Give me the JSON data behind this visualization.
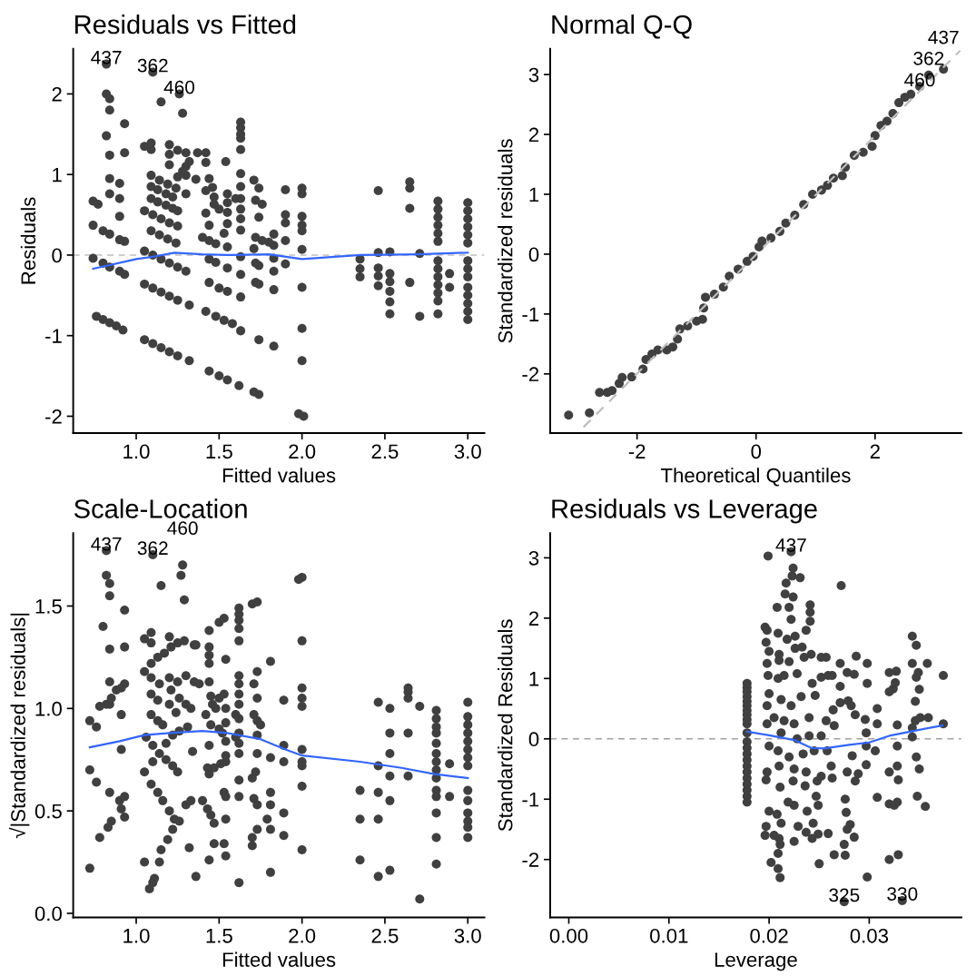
{
  "chart_data": [
    {
      "type": "scatter",
      "title": "Residuals vs Fitted",
      "xlabel": "Fitted values",
      "ylabel": "Residuals",
      "marker": "circle",
      "legend": false,
      "grid": false,
      "xlim": [
        0.62,
        3.1
      ],
      "ylim": [
        -2.21,
        2.56
      ],
      "xticks": [
        {
          "value": 1,
          "label": "1.0"
        },
        {
          "value": 1.5,
          "label": "1.5"
        },
        {
          "value": 2,
          "label": "2.0"
        },
        {
          "value": 2.5,
          "label": "2.5"
        },
        {
          "value": 3,
          "label": "3.0"
        }
      ],
      "yticks": [
        -2,
        -1,
        0,
        1,
        2
      ],
      "ref_lines": [
        {
          "axis": "y",
          "value": 0,
          "label": null,
          "color": "#bebebe",
          "line_style": "dashed"
        }
      ],
      "annotations": [
        {
          "text": "437",
          "x": 0.82,
          "y": 2.37
        },
        {
          "text": "362",
          "x": 1.1,
          "y": 2.27
        },
        {
          "text": "460",
          "x": 1.26,
          "y": 2.0
        }
      ],
      "series": [
        {
          "color": "#404040",
          "x": [
            0.74,
            0.74,
            0.74,
            0.77,
            0.76,
            0.8,
            0.84,
            0.88,
            0.92,
            0.8,
            0.84,
            0.8,
            0.84,
            0.9,
            0.93,
            0.9,
            0.93,
            0.82,
            0.82,
            0.84,
            0.84,
            0.82,
            0.84,
            0.84,
            0.84,
            0.93,
            0.93,
            0.9,
            0.9,
            0.9,
            1.1,
            1.15,
            1.26,
            1.28,
            1.05,
            1.09,
            1.09,
            1.2,
            1.2,
            1.2,
            1.25,
            1.3,
            1.37,
            1.32,
            1.3,
            1.28,
            1.25,
            1.3,
            1.36,
            1.09,
            1.14,
            1.19,
            1.24,
            1.3,
            1.09,
            1.13,
            1.18,
            1.22,
            1.09,
            1.13,
            1.18,
            1.22,
            1.25,
            1.05,
            1.1,
            1.15,
            1.2,
            1.25,
            1.09,
            1.14,
            1.19,
            1.24,
            1.05,
            1.1,
            1.15,
            1.2,
            1.25,
            1.3,
            1.05,
            1.1,
            1.15,
            1.2,
            1.25,
            1.32,
            1.05,
            1.1,
            1.15,
            1.2,
            1.25,
            1.32,
            1.42,
            1.42,
            1.44,
            1.46,
            1.42,
            1.47,
            1.47,
            1.5,
            1.42,
            1.44,
            1.4,
            1.44,
            1.48,
            1.44,
            1.48,
            1.44,
            1.5,
            1.55,
            1.42,
            1.48,
            1.53,
            1.58,
            1.44,
            1.5,
            1.55,
            1.54,
            1.55,
            1.55,
            1.55,
            1.55,
            1.53,
            1.55,
            1.55,
            1.63,
            1.63,
            1.63,
            1.63,
            1.63,
            1.63,
            1.63,
            1.63,
            1.63,
            1.63,
            1.63,
            1.63,
            1.63,
            1.63,
            1.63,
            1.62,
            1.6,
            1.71,
            1.74,
            1.72,
            1.76,
            1.74,
            1.72,
            1.76,
            1.71,
            1.72,
            1.74,
            1.72,
            1.74,
            1.74,
            1.83,
            1.71,
            1.74,
            1.83,
            1.8,
            1.83,
            1.83,
            1.83,
            1.83,
            1.9,
            1.9,
            1.9,
            1.9,
            1.9,
            2.0,
            2.0,
            2.0,
            2.0,
            2.0,
            2.0,
            2.0,
            2.0,
            2.0,
            1.98,
            2.01,
            2.35,
            2.35,
            2.35,
            2.46,
            2.46,
            2.46,
            2.46,
            2.46,
            2.53,
            2.53,
            2.53,
            2.53,
            2.53,
            2.53,
            2.65,
            2.65,
            2.65,
            2.65,
            2.71,
            2.71,
            2.82,
            2.82,
            2.82,
            2.82,
            2.82,
            2.82,
            2.82,
            2.82,
            2.82,
            2.82,
            2.82,
            2.82,
            2.82,
            2.89,
            2.89,
            3.0,
            3.0,
            3.0,
            3.0,
            3.0,
            3.0,
            3.0,
            3.0,
            3.0,
            3.0,
            3.0,
            3.0,
            3.0,
            3.0
          ],
          "values": [
            0.67,
            0.37,
            -0.04,
            0.63,
            -0.76,
            -0.8,
            -0.84,
            -0.88,
            -0.93,
            0.3,
            0.26,
            -0.1,
            -0.15,
            0.19,
            0.17,
            -0.2,
            -0.24,
            2.37,
            2.0,
            1.94,
            1.8,
            1.48,
            1.24,
            0.95,
            0.76,
            1.63,
            1.27,
            0.89,
            0.7,
            0.48,
            2.27,
            1.9,
            2.0,
            1.76,
            1.35,
            1.39,
            1.31,
            1.37,
            1.25,
            1.12,
            1.3,
            1.27,
            1.27,
            1.16,
            1.1,
            1.04,
            0.97,
            0.99,
            0.94,
            0.99,
            0.93,
            0.88,
            0.83,
            0.76,
            0.85,
            0.81,
            0.76,
            0.72,
            0.7,
            0.66,
            0.62,
            0.58,
            0.55,
            0.55,
            0.5,
            0.45,
            0.4,
            0.36,
            0.3,
            0.25,
            0.2,
            0.15,
            0.05,
            0.0,
            -0.05,
            -0.1,
            -0.15,
            -0.2,
            -0.36,
            -0.41,
            -0.46,
            -0.51,
            -0.56,
            -0.62,
            -1.05,
            -1.1,
            -1.15,
            -1.2,
            -1.25,
            -1.31,
            1.27,
            1.15,
            0.95,
            0.84,
            0.8,
            0.72,
            0.63,
            0.57,
            0.52,
            0.37,
            0.22,
            0.18,
            0.14,
            -0.05,
            -0.09,
            -0.34,
            -0.41,
            -0.45,
            -0.7,
            -0.76,
            -0.81,
            -0.85,
            -1.44,
            -1.5,
            -1.55,
            1.16,
            0.76,
            0.65,
            0.53,
            0.39,
            0.27,
            0.1,
            -0.16,
            1.65,
            1.58,
            1.5,
            1.45,
            1.31,
            1.01,
            0.85,
            0.7,
            0.57,
            0.45,
            0.31,
            -0.02,
            -0.24,
            -0.52,
            -0.94,
            -1.62,
            0.7,
            0.93,
            0.83,
            0.68,
            0.63,
            0.47,
            0.22,
            0.18,
            0.08,
            -0.1,
            -0.13,
            -0.34,
            -0.36,
            -1.05,
            -1.13,
            -1.7,
            -1.73,
            0.26,
            0.16,
            0.12,
            -0.04,
            -0.2,
            -0.43,
            0.81,
            0.5,
            0.4,
            0.18,
            -0.11,
            0.83,
            0.76,
            0.48,
            0.37,
            0.3,
            0.07,
            -0.4,
            -0.91,
            -1.31,
            -1.97,
            -2.0,
            -0.05,
            -0.17,
            -0.27,
            0.8,
            0.03,
            -0.16,
            -0.26,
            -0.38,
            0.04,
            -0.23,
            -0.33,
            -0.45,
            -0.58,
            -0.73,
            0.91,
            0.83,
            0.58,
            -0.34,
            0.02,
            -0.76,
            0.67,
            0.57,
            0.47,
            0.37,
            0.27,
            0.17,
            -0.07,
            -0.17,
            -0.27,
            -0.37,
            -0.47,
            -0.57,
            -0.73,
            -0.23,
            -0.4,
            0.65,
            0.55,
            0.45,
            0.35,
            0.25,
            0.15,
            -0.07,
            -0.17,
            -0.27,
            -0.4,
            -0.5,
            -0.6,
            -0.7,
            -0.8
          ]
        },
        {
          "type": "line",
          "color": "#3366ff",
          "line_style": "solid",
          "marker": "none",
          "x": [
            0.74,
            1.0,
            1.1,
            1.23,
            1.4,
            1.55,
            1.8,
            2.0,
            2.35,
            2.7,
            3.0
          ],
          "values": [
            -0.17,
            -0.05,
            -0.02,
            0.03,
            0.01,
            0.0,
            0.01,
            -0.05,
            0.0,
            0.01,
            0.03
          ]
        }
      ]
    },
    {
      "type": "scatter",
      "title": "Normal Q-Q",
      "xlabel": "Theoretical Quantiles",
      "ylabel": "Standardized residuals",
      "marker": "circle",
      "legend": false,
      "grid": false,
      "xlim": [
        -3.46,
        3.45
      ],
      "ylim": [
        -2.99,
        3.43
      ],
      "xticks": [
        -2,
        0,
        2
      ],
      "yticks": [
        -2,
        -1,
        0,
        1,
        2,
        3
      ],
      "annotations": [
        {
          "text": "460",
          "x": 2.75,
          "y": 2.8
        },
        {
          "text": "362",
          "x": 2.9,
          "y": 2.99
        },
        {
          "text": "437",
          "x": 3.15,
          "y": 3.09
        }
      ],
      "series": [
        {
          "type": "line",
          "color": "#bebebe",
          "line_style": "dashed",
          "marker": "none",
          "x": [
            -2.9,
            3.43
          ],
          "values": [
            -2.89,
            3.4
          ]
        },
        {
          "color": "#404040",
          "x": [
            -3.15,
            -2.8,
            -2.63,
            -2.5,
            -2.42,
            -2.3,
            -2.25,
            -2.09,
            -1.9,
            -1.85,
            -1.75,
            -1.65,
            -1.5,
            -1.4,
            -1.32,
            -1.28,
            -1.15,
            -1.0,
            -0.9,
            -0.88,
            -0.85,
            -0.7,
            -0.55,
            -0.45,
            -0.3,
            -0.15,
            -0.05,
            0.05,
            0.1,
            0.25,
            0.4,
            0.5,
            0.65,
            0.8,
            0.95,
            1.1,
            1.2,
            1.3,
            1.45,
            1.5,
            1.65,
            1.8,
            1.95,
            2.0,
            2.1,
            2.2,
            2.3,
            2.4,
            2.5,
            2.6,
            2.75,
            2.9,
            3.15
          ],
          "values": [
            -2.69,
            -2.65,
            -2.31,
            -2.31,
            -2.28,
            -2.16,
            -2.06,
            -2.05,
            -1.92,
            -1.76,
            -1.67,
            -1.6,
            -1.6,
            -1.55,
            -1.42,
            -1.25,
            -1.2,
            -1.12,
            -1.09,
            -0.9,
            -0.72,
            -0.67,
            -0.55,
            -0.37,
            -0.25,
            -0.12,
            -0.04,
            0.12,
            0.22,
            0.27,
            0.38,
            0.52,
            0.65,
            0.83,
            1.0,
            1.07,
            1.15,
            1.27,
            1.31,
            1.45,
            1.65,
            1.7,
            1.8,
            1.98,
            2.15,
            2.22,
            2.35,
            2.53,
            2.62,
            2.67,
            2.8,
            2.99,
            3.09
          ]
        }
      ]
    },
    {
      "type": "scatter",
      "title": "Scale-Location",
      "xlabel": "Fitted values",
      "ylabel": "√|Standardized residuals|",
      "marker": "circle",
      "legend": false,
      "grid": false,
      "xlim": [
        0.62,
        3.1
      ],
      "ylim": [
        -0.02,
        1.856
      ],
      "xticks": [
        {
          "value": 1,
          "label": "1.0"
        },
        {
          "value": 1.5,
          "label": "1.5"
        },
        {
          "value": 2,
          "label": "2.0"
        },
        {
          "value": 2.5,
          "label": "2.5"
        },
        {
          "value": 3,
          "label": "3.0"
        }
      ],
      "yticks": [
        {
          "value": 0,
          "label": "0.0"
        },
        {
          "value": 0.5,
          "label": "0.5"
        },
        {
          "value": 1,
          "label": "1.0"
        },
        {
          "value": 1.5,
          "label": "1.5"
        }
      ],
      "annotations": [
        {
          "text": "437",
          "x": 0.82,
          "y": 1.77
        },
        {
          "text": "362",
          "x": 1.1,
          "y": 1.75
        },
        {
          "text": "460",
          "x": 1.28,
          "y": 1.7
        }
      ],
      "series": [
        {
          "color": "#404040",
          "x": [
            0.72,
            0.76,
            0.72,
            0.72,
            0.78,
            0.82,
            0.85,
            0.84,
            0.88,
            0.91,
            0.93,
            0.84,
            0.8,
            0.84,
            0.93,
            0.93,
            0.82,
            0.84,
            0.84,
            0.82,
            0.76,
            0.84,
            0.9,
            0.91,
            0.93,
            0.93,
            0.83,
            0.85,
            0.78,
            0.91,
            0.91,
            1.05,
            1.09,
            1.13,
            1.17,
            1.21,
            1.25,
            1.29,
            1.35,
            1.05,
            1.09,
            1.09,
            1.2,
            1.15,
            1.27,
            1.29,
            1.1,
            1.28,
            1.09,
            1.14,
            1.2,
            1.25,
            1.3,
            1.35,
            1.09,
            1.13,
            1.2,
            1.24,
            1.09,
            1.13,
            1.16,
            1.21,
            1.26,
            1.3,
            1.33,
            1.06,
            1.1,
            1.14,
            1.18,
            1.22,
            1.25,
            1.05,
            1.1,
            1.18,
            1.22,
            1.26,
            1.31,
            1.09,
            1.13,
            1.16,
            1.2,
            1.23,
            1.26,
            1.15,
            1.19,
            1.22,
            1.05,
            1.14,
            1.08,
            1.1,
            1.11,
            1.32,
            1.3,
            1.33,
            1.36,
            1.36,
            1.34,
            1.38,
            1.44,
            1.5,
            1.53,
            1.44,
            1.44,
            1.44,
            1.44,
            1.42,
            1.46,
            1.5,
            1.53,
            1.45,
            1.48,
            1.45,
            1.5,
            1.52,
            1.43,
            1.44,
            1.47,
            1.51,
            1.54,
            1.44,
            1.4,
            1.43,
            1.45,
            1.47,
            1.47,
            1.53,
            1.44,
            1.54,
            1.54,
            1.54,
            1.54,
            1.54,
            1.54,
            1.53,
            1.54,
            1.54,
            1.62,
            1.62,
            1.62,
            1.62,
            1.62,
            1.62,
            1.62,
            1.62,
            1.62,
            1.6,
            1.62,
            1.62,
            1.62,
            1.62,
            1.62,
            1.62,
            1.62,
            1.6,
            1.7,
            1.73,
            1.73,
            1.71,
            1.73,
            1.71,
            1.73,
            1.75,
            1.73,
            1.73,
            1.72,
            1.7,
            1.71,
            1.73,
            1.73,
            1.7,
            1.7,
            1.81,
            1.81,
            1.81,
            1.81,
            1.79,
            1.81,
            1.81,
            1.89,
            1.89,
            1.89,
            1.89,
            1.89,
            1.98,
            2.0,
            2.0,
            2.0,
            2.0,
            2.0,
            2.0,
            2.0,
            2.0,
            2.0,
            2.0,
            2.35,
            2.35,
            2.35,
            2.46,
            2.46,
            2.46,
            2.46,
            2.46,
            2.53,
            2.53,
            2.53,
            2.53,
            2.53,
            2.53,
            2.64,
            2.64,
            2.64,
            2.64,
            2.64,
            2.71,
            2.71,
            2.81,
            2.81,
            2.81,
            2.81,
            2.81,
            2.81,
            2.81,
            2.81,
            2.81,
            2.81,
            2.81,
            2.81,
            2.81,
            2.81,
            2.89,
            2.89,
            3.0,
            3.0,
            3.0,
            3.0,
            3.0,
            3.0,
            3.0,
            3.0,
            3.0,
            3.0,
            3.0,
            3.0,
            3.0,
            3.0
          ],
          "values": [
            0.94,
            0.91,
            0.7,
            0.22,
            1.01,
            1.02,
            1.05,
            1.02,
            1.09,
            1.1,
            1.12,
            1.13,
            1.4,
            1.29,
            1.3,
            1.48,
            1.65,
            1.61,
            1.55,
            1.77,
            0.64,
            0.59,
            0.55,
            0.51,
            0.57,
            0.47,
            0.42,
            0.45,
            0.37,
            0.97,
            0.8,
            1.18,
            1.22,
            1.25,
            1.27,
            1.3,
            1.32,
            1.33,
            1.31,
            1.34,
            1.37,
            1.32,
            1.35,
            1.6,
            1.65,
            1.53,
            1.75,
            1.7,
            1.15,
            1.12,
            1.15,
            1.13,
            1.16,
            1.13,
            1.07,
            1.04,
            1.02,
            0.98,
            0.97,
            0.94,
            0.92,
            1.09,
            1.05,
            1.02,
            1.0,
            0.86,
            0.82,
            0.78,
            0.75,
            0.72,
            0.69,
            0.69,
            0.74,
            0.83,
            0.87,
            0.89,
            0.91,
            0.63,
            0.59,
            0.55,
            0.5,
            0.46,
            0.45,
            0.31,
            0.36,
            0.41,
            0.25,
            0.25,
            0.12,
            0.15,
            0.17,
            0.32,
            0.53,
            0.55,
            0.18,
            1.31,
            0.79,
            1.12,
            1.38,
            1.42,
            1.44,
            1.3,
            1.26,
            1.22,
            1.13,
            0.97,
            1.02,
            1.05,
            1.07,
            1.06,
            1.0,
            0.92,
            0.9,
            0.88,
            0.71,
            0.68,
            0.71,
            0.73,
            0.74,
            0.82,
            0.55,
            0.51,
            0.48,
            0.44,
            0.34,
            0.34,
            0.26,
            0.28,
            1.24,
            1.0,
            0.93,
            0.84,
            0.77,
            0.59,
            0.57,
            0.46,
            1.49,
            1.46,
            1.43,
            1.39,
            1.33,
            1.16,
            1.12,
            1.07,
            1.02,
            0.97,
            0.95,
            0.88,
            0.83,
            0.78,
            0.65,
            0.57,
            0.15,
            0.86,
            1.51,
            1.52,
            1.18,
            1.12,
            1.05,
            0.97,
            0.94,
            0.92,
            0.87,
            0.78,
            0.69,
            0.66,
            0.56,
            0.53,
            0.41,
            0.37,
            0.33,
            1.23,
            0.76,
            0.59,
            0.53,
            0.46,
            0.41,
            0.2,
            1.04,
            0.82,
            0.74,
            0.49,
            0.38,
            1.63,
            1.64,
            1.33,
            1.1,
            1.05,
            1.01,
            0.8,
            0.74,
            0.72,
            0.62,
            0.31,
            0.6,
            0.46,
            0.26,
            1.03,
            0.72,
            0.59,
            0.46,
            0.18,
            1.0,
            0.88,
            0.78,
            0.67,
            0.55,
            0.21,
            1.1,
            1.08,
            1.05,
            0.88,
            0.67,
            1.01,
            0.07,
            0.99,
            0.95,
            0.91,
            0.88,
            0.83,
            0.78,
            0.74,
            0.7,
            0.66,
            0.6,
            0.57,
            0.49,
            0.37,
            0.24,
            0.73,
            0.57,
            1.03,
            0.96,
            0.92,
            0.88,
            0.84,
            0.8,
            0.76,
            0.72,
            0.6,
            0.55,
            0.49,
            0.45,
            0.42,
            0.37
          ]
        },
        {
          "type": "line",
          "color": "#3366ff",
          "line_style": "solid",
          "marker": "none",
          "x": [
            0.72,
            0.9,
            1.05,
            1.2,
            1.4,
            1.55,
            1.75,
            1.9,
            2.0,
            2.35,
            2.6,
            2.8,
            3.0
          ],
          "values": [
            0.81,
            0.84,
            0.87,
            0.88,
            0.89,
            0.88,
            0.85,
            0.8,
            0.77,
            0.74,
            0.71,
            0.68,
            0.66
          ]
        }
      ]
    },
    {
      "type": "scatter",
      "title": "Residuals vs Leverage",
      "xlabel": "Leverage",
      "ylabel": "Standardized Residuals",
      "marker": "circle",
      "legend": false,
      "grid": false,
      "xlim": [
        -0.00186,
        0.0392
      ],
      "ylim": [
        -2.96,
        3.41
      ],
      "xticks": [
        {
          "value": 0,
          "label": "0.00"
        },
        {
          "value": 0.01,
          "label": "0.01"
        },
        {
          "value": 0.02,
          "label": "0.02"
        },
        {
          "value": 0.03,
          "label": "0.03"
        }
      ],
      "yticks": [
        -2,
        -1,
        0,
        1,
        2,
        3
      ],
      "ref_lines": [
        {
          "axis": "y",
          "value": 0,
          "label": null,
          "color": "#a0a0a0",
          "line_style": "dashed"
        }
      ],
      "annotations": [
        {
          "text": "437",
          "x": 0.0222,
          "y": 3.1
        },
        {
          "text": "325",
          "x": 0.0275,
          "y": -2.7
        },
        {
          "text": "330",
          "x": 0.0333,
          "y": -2.68
        }
      ],
      "series": [
        {
          "color": "#404040",
          "x": [
            0.0178,
            0.0178,
            0.0178,
            0.0178,
            0.0178,
            0.0178,
            0.0178,
            0.0178,
            0.0178,
            0.0178,
            0.0178,
            0.0178,
            0.0178,
            0.0178,
            0.0178,
            0.0178,
            0.0178,
            0.0178,
            0.0178,
            0.0178,
            0.0178,
            0.0178,
            0.0199,
            0.0222,
            0.0224,
            0.0223,
            0.0231,
            0.0217,
            0.0216,
            0.0224,
            0.0208,
            0.022,
            0.0222,
            0.0241,
            0.0241,
            0.0241,
            0.0198,
            0.0196,
            0.0209,
            0.0218,
            0.0226,
            0.0237,
            0.0226,
            0.0233,
            0.0197,
            0.02,
            0.021,
            0.0198,
            0.021,
            0.022,
            0.0235,
            0.0242,
            0.0252,
            0.0199,
            0.0209,
            0.0215,
            0.0228,
            0.0243,
            0.0252,
            0.0259,
            0.02,
            0.0212,
            0.0222,
            0.0232,
            0.0246,
            0.0198,
            0.0205,
            0.0215,
            0.0225,
            0.024,
            0.0198,
            0.0212,
            0.0228,
            0.024,
            0.0252,
            0.02,
            0.0209,
            0.022,
            0.0234,
            0.0245,
            0.0198,
            0.021,
            0.0225,
            0.0237,
            0.0248,
            0.0252,
            0.0263,
            0.0197,
            0.0211,
            0.0224,
            0.0236,
            0.0247,
            0.0225,
            0.0219,
            0.02,
            0.0208,
            0.0212,
            0.0238,
            0.0249,
            0.0244,
            0.0197,
            0.0229,
            0.0237,
            0.0196,
            0.0205,
            0.021,
            0.0225,
            0.0243,
            0.0249,
            0.0259,
            0.0209,
            0.0211,
            0.0202,
            0.0209,
            0.0211,
            0.025,
            0.0272,
            0.0257,
            0.0263,
            0.0271,
            0.0271,
            0.0278,
            0.0285,
            0.0287,
            0.0298,
            0.0298,
            0.0264,
            0.0265,
            0.0271,
            0.0279,
            0.0282,
            0.0286,
            0.0296,
            0.0297,
            0.0308,
            0.0308,
            0.0257,
            0.0258,
            0.0262,
            0.0278,
            0.0283,
            0.0286,
            0.0289,
            0.0297,
            0.0297,
            0.0306,
            0.0276,
            0.0277,
            0.0278,
            0.0281,
            0.0285,
            0.0275,
            0.0265,
            0.0276,
            0.0298,
            0.0308,
            0.032,
            0.0327,
            0.0326,
            0.0324,
            0.032,
            0.0328,
            0.0328,
            0.0328,
            0.0329,
            0.032,
            0.032,
            0.0325,
            0.0328,
            0.032,
            0.0329,
            0.0343,
            0.0347,
            0.0343,
            0.0349,
            0.0347,
            0.035,
            0.0346,
            0.0346,
            0.0343,
            0.0343,
            0.0351,
            0.0347,
            0.035,
            0.0348,
            0.0356,
            0.0358,
            0.0359,
            0.0374,
            0.0374,
            0.0275,
            0.0333
          ],
          "values": [
            0.92,
            0.85,
            0.78,
            0.7,
            0.62,
            0.55,
            0.47,
            0.4,
            0.32,
            0.25,
            0.1,
            -0.05,
            -0.15,
            -0.25,
            -0.35,
            -0.45,
            -0.55,
            -0.65,
            -0.75,
            -0.85,
            -0.95,
            -1.05,
            3.03,
            3.1,
            2.83,
            2.7,
            2.67,
            2.58,
            2.4,
            2.35,
            2.18,
            2.18,
            1.98,
            2.22,
            2.1,
            1.95,
            1.8,
            1.85,
            1.75,
            1.65,
            1.7,
            1.8,
            1.5,
            1.52,
            1.6,
            1.45,
            1.4,
            1.25,
            1.3,
            1.28,
            1.35,
            1.4,
            1.35,
            1.05,
            1.0,
            1.05,
            1.08,
            0.92,
            1.02,
            1.05,
            0.75,
            0.65,
            0.55,
            0.7,
            0.72,
            0.55,
            0.35,
            0.3,
            0.25,
            0.35,
            0.25,
            0.1,
            0.0,
            0.05,
            0.05,
            -0.12,
            -0.2,
            -0.3,
            -0.25,
            -0.2,
            -0.55,
            -0.45,
            -0.5,
            -0.55,
            -0.7,
            -0.62,
            -0.65,
            -0.68,
            -0.8,
            -0.7,
            -0.78,
            -0.95,
            -1.1,
            -1.05,
            -1.2,
            -1.25,
            -1.4,
            -1.2,
            -1.1,
            -1.4,
            -1.45,
            -1.45,
            -1.55,
            -1.6,
            -1.6,
            -1.65,
            -1.7,
            -1.65,
            -1.58,
            -1.57,
            -1.9,
            -1.75,
            -2.05,
            -2.15,
            -2.3,
            -2.07,
            2.54,
            1.35,
            1.05,
            1.25,
            0.87,
            1.1,
            1.07,
            1.37,
            1.25,
            0.92,
            0.48,
            0.22,
            0.6,
            0.63,
            0.55,
            0.4,
            0.32,
            0.1,
            0.5,
            0.25,
            0.3,
            -0.2,
            -0.45,
            -0.55,
            -0.28,
            -0.7,
            -0.58,
            -0.43,
            -0.12,
            -0.2,
            -1.0,
            -1.22,
            -1.5,
            -1.42,
            -1.63,
            -1.75,
            -1.92,
            -1.93,
            -2.29,
            -0.97,
            1.1,
            1.12,
            0.93,
            0.83,
            0.78,
            0.23,
            -0.12,
            -0.45,
            -0.68,
            -0.55,
            -1.08,
            -1.1,
            -1.05,
            -2.0,
            -1.92,
            1.7,
            1.55,
            1.25,
            1.1,
            1.02,
            0.82,
            0.62,
            0.3,
            0.18,
            0.03,
            0.35,
            -0.3,
            -0.5,
            -0.95,
            -1.12,
            1.25,
            0.35,
            1.05,
            0.25,
            -2.7,
            -2.68
          ]
        },
        {
          "type": "line",
          "color": "#3366ff",
          "line_style": "solid",
          "marker": "none",
          "x": [
            0.0178,
            0.02,
            0.0225,
            0.0242,
            0.0255,
            0.028,
            0.03,
            0.032,
            0.035,
            0.0373
          ],
          "values": [
            0.12,
            0.06,
            -0.02,
            -0.15,
            -0.16,
            -0.1,
            -0.06,
            0.05,
            0.15,
            0.22
          ]
        }
      ]
    }
  ]
}
